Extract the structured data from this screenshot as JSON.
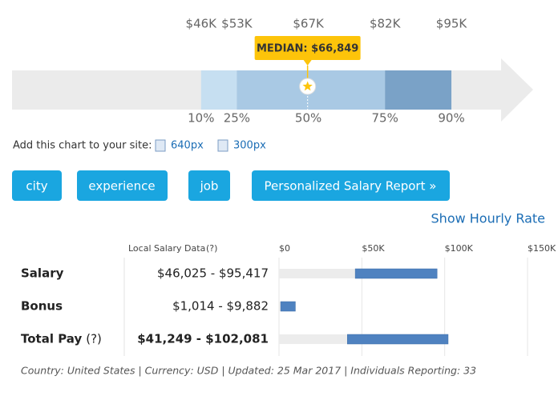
{
  "chart_data": [
    {
      "type": "percentile",
      "categories": [
        "10%",
        "25%",
        "50%",
        "75%",
        "90%"
      ],
      "values": [
        46000,
        53000,
        67000,
        82000,
        95000
      ],
      "value_labels": [
        "$46K",
        "$53K",
        "$67K",
        "$82K",
        "$95K"
      ],
      "xlim": [
        9000,
        111000
      ],
      "band_colors": [
        "#c6dff1",
        "#a9c9e4",
        "#a9c9e4",
        "#7aa2c7"
      ],
      "median": 66849,
      "median_label": "MEDIAN: $66,849",
      "median_color": "#fdc40a"
    },
    {
      "type": "range_bar",
      "title": "Local Salary Data",
      "title_help": "(?)",
      "categories": [
        "Salary",
        "Bonus",
        "Total Pay"
      ],
      "category_help": [
        null,
        null,
        "(?)"
      ],
      "low": [
        46025,
        1014,
        41249
      ],
      "high": [
        95417,
        9882,
        102081
      ],
      "value_labels": [
        "$46,025 - $95,417",
        "$1,014 - $9,882",
        "$41,249 - $102,081"
      ],
      "emphasized": [
        false,
        false,
        true
      ],
      "xlim": [
        0,
        150000
      ],
      "xticks": [
        {
          "value": 0,
          "label": "$0"
        },
        {
          "value": 50000,
          "label": "$50K"
        },
        {
          "value": 100000,
          "label": "$100K"
        },
        {
          "value": 150000,
          "label": "$150K"
        }
      ],
      "grid": true,
      "color": "#4f82c0",
      "track_color": "#ececec"
    }
  ],
  "embed": {
    "label": "Add this chart to your site:",
    "links": [
      "640px",
      "300px"
    ]
  },
  "buttons": [
    "city",
    "experience",
    "job",
    "Personalized Salary Report »"
  ],
  "hourly_link": "Show Hourly Rate",
  "footer": "Country: United States | Currency: USD | Updated: 25 Mar 2017 | Individuals Reporting: 33"
}
